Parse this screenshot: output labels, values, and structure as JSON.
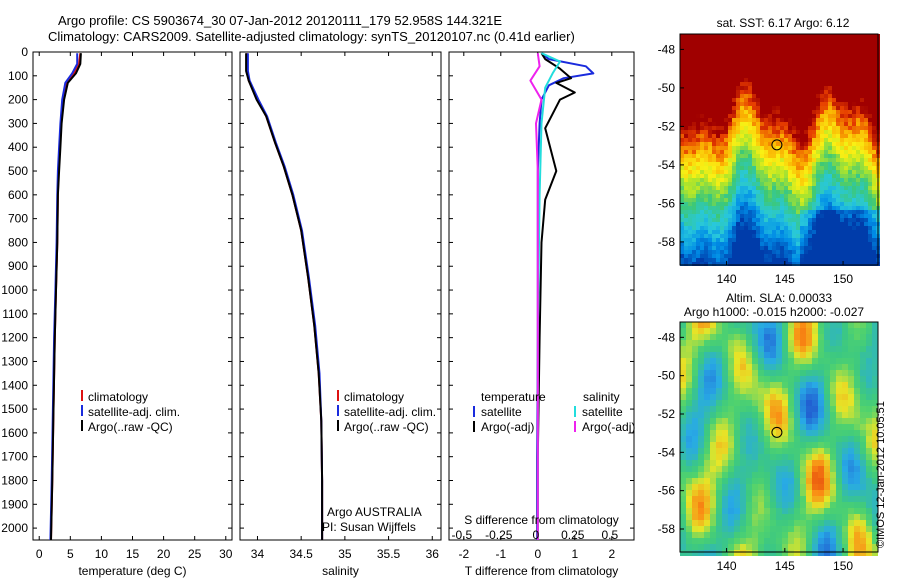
{
  "header": {
    "line1": "Argo profile: CS 5903674_30 07-Jan-2012 20120111_179 52.958S 144.321E",
    "line2": "Climatology: CARS2009. Satellite-adjusted climatology: synTS_20120107.nc (0.41d earlier)"
  },
  "credit": "©IMOS 12-Jan-2012 10:05:51",
  "colors": {
    "climatology": "#dd1111",
    "satellite": "#1a2bdd",
    "argo": "#000000",
    "t_satellite": "#1a2bdd",
    "s_satellite": "#22dddd",
    "s_argo": "#ee22ee"
  },
  "chart_data": [
    {
      "type": "line",
      "panel": "temperature",
      "xlabel": "temperature (deg C)",
      "xlim": [
        -1,
        31
      ],
      "ylim": [
        0,
        2050
      ],
      "y_reversed": true,
      "xticks": [
        0,
        5,
        10,
        15,
        20,
        25,
        30
      ],
      "yticks": [
        0,
        100,
        200,
        300,
        400,
        500,
        600,
        700,
        800,
        900,
        1000,
        1100,
        1200,
        1300,
        1400,
        1500,
        1600,
        1700,
        1800,
        1900,
        2000
      ],
      "legend": [
        "climatology",
        "satellite-adj. clim.",
        "Argo(..raw -QC)"
      ],
      "series": [
        {
          "name": "climatology",
          "color": "climatology",
          "x": [
            6.6,
            6.4,
            5.6,
            4.4,
            3.8,
            3.5,
            3.3,
            3.1,
            3.0,
            2.9,
            2.7,
            2.5,
            2.3,
            2.1,
            1.9
          ],
          "y": [
            5,
            50,
            90,
            130,
            200,
            300,
            400,
            500,
            600,
            800,
            1000,
            1200,
            1500,
            1800,
            2050
          ]
        },
        {
          "name": "satellite-adj. clim.",
          "color": "satellite",
          "x": [
            6.1,
            6.1,
            5.3,
            4.2,
            3.7,
            3.4,
            3.2,
            3.0,
            2.9,
            2.8,
            2.6,
            2.4,
            2.2,
            2.0,
            1.8
          ],
          "y": [
            5,
            50,
            90,
            130,
            200,
            300,
            400,
            500,
            600,
            800,
            1000,
            1200,
            1500,
            1800,
            2050
          ]
        },
        {
          "name": "Argo(..raw -QC)",
          "color": "argo",
          "x": [
            6.7,
            6.6,
            5.9,
            4.6,
            4.0,
            3.6,
            3.4,
            3.2,
            3.0,
            2.9,
            2.7,
            2.5,
            2.3,
            2.1,
            1.9
          ],
          "y": [
            5,
            50,
            90,
            130,
            200,
            300,
            400,
            500,
            600,
            800,
            1000,
            1200,
            1500,
            1800,
            2050
          ]
        }
      ]
    },
    {
      "type": "line",
      "panel": "salinity",
      "xlabel": "salinity",
      "xlim": [
        33.8,
        36.1
      ],
      "ylim": [
        0,
        2050
      ],
      "y_reversed": true,
      "xticks": [
        34,
        34.5,
        35,
        35.5,
        36
      ],
      "legend": [
        "climatology",
        "satellite-adj. clim.",
        "Argo(..raw -QC)"
      ],
      "annotation": [
        "Argo AUSTRALIA",
        "PI: Susan Wijffels"
      ],
      "series": [
        {
          "name": "climatology",
          "color": "climatology",
          "x": [
            33.88,
            33.88,
            33.9,
            34.0,
            34.1,
            34.2,
            34.3,
            34.4,
            34.5,
            34.58,
            34.65,
            34.7,
            34.73,
            34.74,
            34.74
          ],
          "y": [
            5,
            80,
            120,
            200,
            270,
            380,
            480,
            600,
            750,
            950,
            1150,
            1350,
            1550,
            1800,
            2050
          ]
        },
        {
          "name": "satellite-adj. clim.",
          "color": "satellite",
          "x": [
            33.89,
            33.89,
            33.91,
            34.01,
            34.11,
            34.21,
            34.31,
            34.41,
            34.51,
            34.59,
            34.66,
            34.71,
            34.73,
            34.74,
            34.74
          ],
          "y": [
            5,
            80,
            120,
            200,
            270,
            380,
            480,
            600,
            750,
            950,
            1150,
            1350,
            1550,
            1800,
            2050
          ]
        },
        {
          "name": "Argo(..raw -QC)",
          "color": "argo",
          "x": [
            33.87,
            33.87,
            33.9,
            33.99,
            34.1,
            34.2,
            34.3,
            34.4,
            34.5,
            34.58,
            34.65,
            34.7,
            34.73,
            34.74,
            34.74
          ],
          "y": [
            5,
            80,
            120,
            200,
            270,
            380,
            480,
            600,
            750,
            950,
            1150,
            1350,
            1550,
            1800,
            2050
          ]
        }
      ]
    },
    {
      "type": "line",
      "panel": "difference",
      "xlabel": "T difference from climatology",
      "toplabel": "S difference from climatology",
      "xlim": [
        -2.4,
        2.6
      ],
      "ylim": [
        0,
        2050
      ],
      "y_reversed": true,
      "xticks": [
        -2,
        -1,
        0,
        1,
        2
      ],
      "s_ticks_label": [
        "-0.5",
        "-0.25",
        "0",
        "0.25",
        "0.5"
      ],
      "s_ticks_pos": [
        -2,
        -1,
        0,
        1,
        2
      ],
      "legend_headers": [
        "temperature",
        "salinity"
      ],
      "legend": [
        "satellite",
        "Argo(-adj)",
        "satellite",
        "Argo(-adj)"
      ],
      "series": [
        {
          "name": "satellite",
          "color": "t_satellite",
          "x": [
            0.1,
            0.3,
            1.3,
            1.5,
            0.7,
            0.3,
            0.1,
            0.05,
            0.0,
            0.0,
            0.0,
            -0.02,
            -0.02
          ],
          "y": [
            5,
            30,
            60,
            90,
            110,
            140,
            200,
            300,
            500,
            800,
            1200,
            1700,
            2050
          ]
        },
        {
          "name": "Argo(-adj)",
          "color": "argo",
          "x": [
            0.1,
            0.2,
            0.6,
            0.9,
            0.5,
            1.0,
            0.6,
            0.4,
            0.2,
            0.5,
            0.2,
            0.1,
            0.05,
            0.0,
            0.0
          ],
          "y": [
            5,
            30,
            70,
            110,
            130,
            170,
            200,
            260,
            320,
            500,
            620,
            800,
            1200,
            1700,
            2050
          ]
        },
        {
          "name": "satellite",
          "color": "s_satellite",
          "x": [
            0.1,
            0.6,
            0.4,
            0.2,
            0.1,
            0.05,
            0.0,
            0.0
          ],
          "y": [
            5,
            40,
            90,
            150,
            300,
            600,
            1200,
            2050
          ]
        },
        {
          "name": "Argo(-adj)",
          "color": "s_argo",
          "x": [
            0.0,
            0.05,
            -0.2,
            0.1,
            -0.05,
            0.0,
            0.0
          ],
          "y": [
            5,
            60,
            120,
            200,
            300,
            500,
            2050
          ]
        }
      ]
    },
    {
      "type": "heatmap",
      "panel": "sst_map",
      "title": "sat. SST: 6.17 Argo: 6.12",
      "xlim": [
        136,
        153
      ],
      "ylim": [
        -59.2,
        -47.2
      ],
      "xticks": [
        140,
        145,
        150
      ],
      "yticks": [
        -48,
        -50,
        -52,
        -54,
        -56,
        -58
      ],
      "marker": {
        "lon": 144.321,
        "lat": -52.958
      }
    },
    {
      "type": "heatmap",
      "panel": "sla_map",
      "title_lines": [
        "Altim. SLA: 0.00033",
        "Argo h1000: -0.015 h2000: -0.027"
      ],
      "xlim": [
        136,
        153
      ],
      "ylim": [
        -59.2,
        -47.2
      ],
      "xticks": [
        140,
        145,
        150
      ],
      "yticks": [
        -48,
        -50,
        -52,
        -54,
        -56,
        -58
      ],
      "marker": {
        "lon": 144.321,
        "lat": -52.958
      }
    }
  ]
}
